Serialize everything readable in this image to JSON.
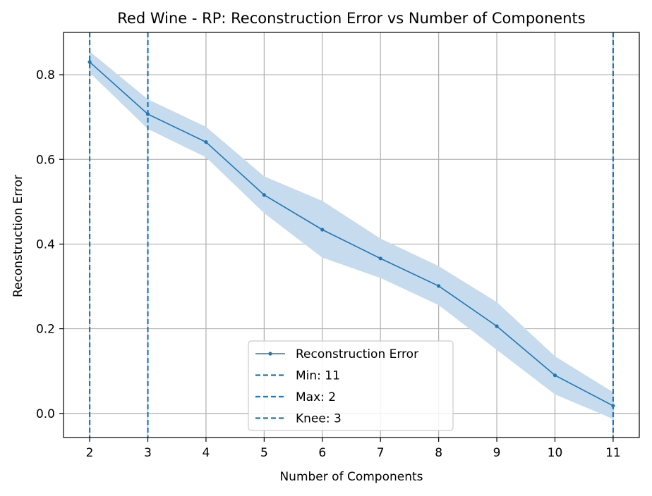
{
  "chart_data": {
    "type": "line",
    "title": "Red Wine - RP: Reconstruction Error vs Number of Components",
    "xlabel": "Number of Components",
    "ylabel": "Reconstruction Error",
    "x": [
      2,
      3,
      4,
      5,
      6,
      7,
      8,
      9,
      10,
      11
    ],
    "xlim": [
      1.55,
      11.45
    ],
    "ylim": [
      -0.057,
      0.9
    ],
    "xticks": [
      2,
      3,
      4,
      5,
      6,
      7,
      8,
      9,
      10,
      11
    ],
    "xtick_labels": [
      "2",
      "3",
      "4",
      "5",
      "6",
      "7",
      "8",
      "9",
      "10",
      "11"
    ],
    "yticks": [
      0.0,
      0.2,
      0.4,
      0.6,
      0.8
    ],
    "ytick_labels": [
      "0.0",
      "0.2",
      "0.4",
      "0.6",
      "0.8"
    ],
    "grid": true,
    "series": [
      {
        "name": "Reconstruction Error",
        "values": [
          0.83,
          0.707,
          0.641,
          0.516,
          0.434,
          0.366,
          0.301,
          0.206,
          0.09,
          0.018
        ],
        "band_upper": [
          0.855,
          0.742,
          0.677,
          0.56,
          0.502,
          0.413,
          0.348,
          0.263,
          0.135,
          0.05
        ],
        "band_lower": [
          0.805,
          0.672,
          0.605,
          0.473,
          0.368,
          0.32,
          0.256,
          0.15,
          0.045,
          -0.013
        ],
        "color": "#1f77b4",
        "band_color": "#c6dbed"
      }
    ],
    "vlines": [
      {
        "x": 11,
        "label": "Min: 11"
      },
      {
        "x": 2,
        "label": "Max: 2"
      },
      {
        "x": 3,
        "label": "Knee: 3"
      }
    ],
    "legend": {
      "position": "lower-center",
      "entries": [
        "Reconstruction Error",
        "Min: 11",
        "Max: 2",
        "Knee: 3"
      ]
    },
    "colors": {
      "line": "#1f77b4",
      "band": "#c6dbed",
      "grid": "#b0b0b0",
      "axis": "#000000"
    }
  }
}
